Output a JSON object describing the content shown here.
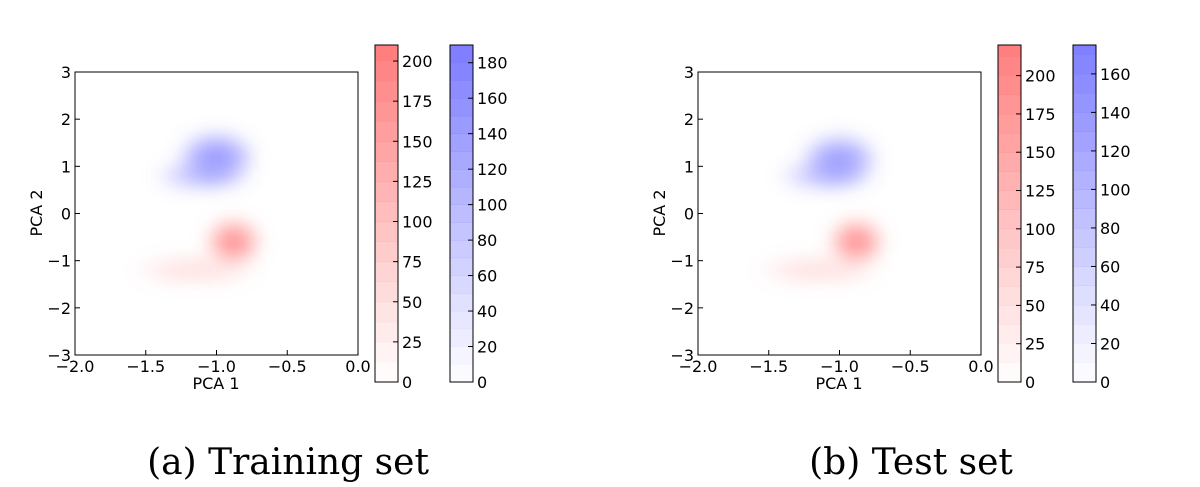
{
  "chart_data": [
    {
      "type": "heatmap",
      "caption": "(a) Training set",
      "xlabel": "PCA 1",
      "ylabel": "PCA 2",
      "xlim": [
        -2.0,
        0.0
      ],
      "ylim": [
        -3,
        3
      ],
      "xticks": [
        "−2.0",
        "−1.5",
        "−1.0",
        "−0.5",
        "0.0"
      ],
      "yticks": [
        "3",
        "2",
        "1",
        "0",
        "−1",
        "−2",
        "−3"
      ],
      "grid": false,
      "colors": {
        "red": "#ff7b7b",
        "blue": "#7b7bff"
      },
      "blobs": [
        {
          "color": "blue",
          "cx": -1.0,
          "cy": 1.2,
          "rx": 0.28,
          "ry": 0.55,
          "peak": 180
        },
        {
          "color": "blue",
          "cx": -1.1,
          "cy": 0.8,
          "rx": 0.35,
          "ry": 0.3,
          "peak": 120
        },
        {
          "color": "red",
          "cx": -0.88,
          "cy": -0.6,
          "rx": 0.2,
          "ry": 0.5,
          "peak": 200
        },
        {
          "color": "red",
          "cx": -1.15,
          "cy": -1.2,
          "rx": 0.45,
          "ry": 0.3,
          "peak": 60
        }
      ],
      "colorbars": [
        {
          "name": "red",
          "max": 210,
          "ticks": [
            "0",
            "25",
            "50",
            "75",
            "100",
            "125",
            "150",
            "175",
            "200"
          ]
        },
        {
          "name": "blue",
          "max": 190,
          "ticks": [
            "0",
            "20",
            "40",
            "60",
            "80",
            "100",
            "120",
            "140",
            "160",
            "180"
          ]
        }
      ]
    },
    {
      "type": "heatmap",
      "caption": "(b) Test set",
      "xlabel": "PCA 1",
      "ylabel": "PCA 2",
      "xlim": [
        -2.0,
        0.0
      ],
      "ylim": [
        -3,
        3
      ],
      "xticks": [
        "−2.0",
        "−1.5",
        "−1.0",
        "−0.5",
        "0.0"
      ],
      "yticks": [
        "3",
        "2",
        "1",
        "0",
        "−1",
        "−2",
        "−3"
      ],
      "grid": false,
      "colors": {
        "red": "#ff7b7b",
        "blue": "#7b7bff"
      },
      "blobs": [
        {
          "color": "blue",
          "cx": -1.0,
          "cy": 1.15,
          "rx": 0.28,
          "ry": 0.55,
          "peak": 170
        },
        {
          "color": "blue",
          "cx": -1.1,
          "cy": 0.8,
          "rx": 0.35,
          "ry": 0.3,
          "peak": 110
        },
        {
          "color": "red",
          "cx": -0.88,
          "cy": -0.6,
          "rx": 0.2,
          "ry": 0.5,
          "peak": 210
        },
        {
          "color": "red",
          "cx": -1.15,
          "cy": -1.2,
          "rx": 0.45,
          "ry": 0.3,
          "peak": 60
        }
      ],
      "colorbars": [
        {
          "name": "red",
          "max": 220,
          "ticks": [
            "0",
            "25",
            "50",
            "75",
            "100",
            "125",
            "150",
            "175",
            "200"
          ]
        },
        {
          "name": "blue",
          "max": 175,
          "ticks": [
            "0",
            "20",
            "40",
            "60",
            "80",
            "100",
            "120",
            "140",
            "160"
          ]
        }
      ]
    }
  ]
}
